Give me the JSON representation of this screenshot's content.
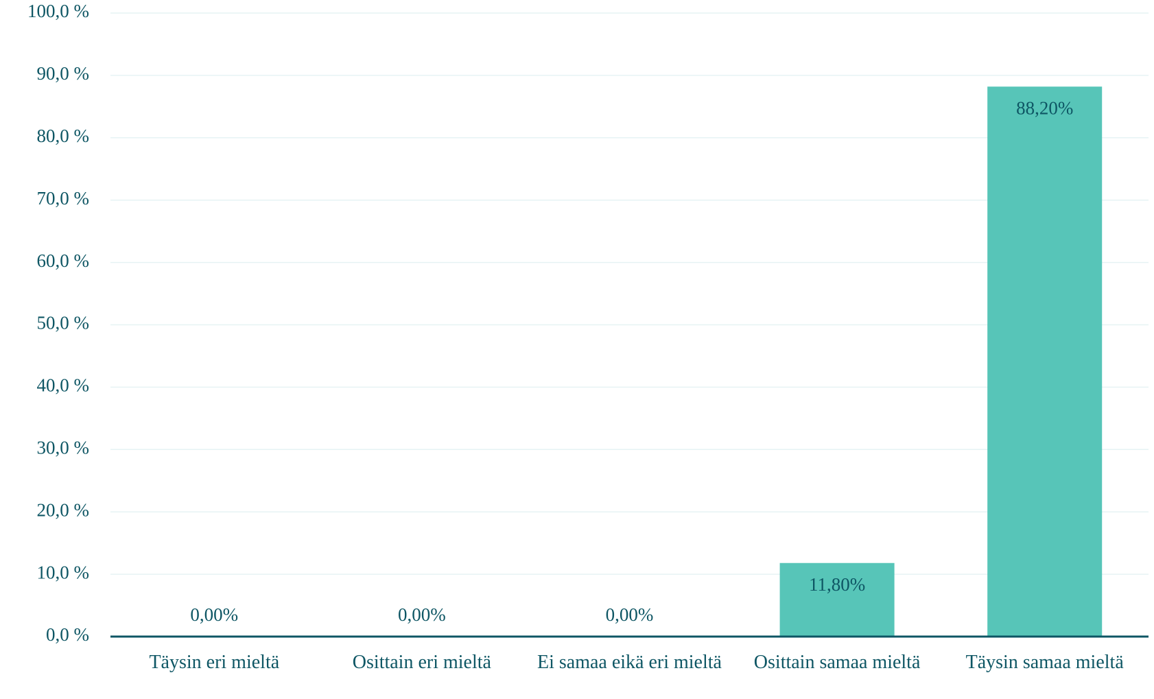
{
  "chart_data": {
    "type": "bar",
    "categories": [
      "Täysin eri mieltä",
      "Osittain eri mieltä",
      "Ei samaa eikä eri mieltä",
      "Osittain samaa mieltä",
      "Täysin samaa mieltä"
    ],
    "values": [
      0,
      0,
      0,
      11.8,
      88.2
    ],
    "value_labels": [
      "0,00%",
      "0,00%",
      "0,00%",
      "11,80%",
      "88,20%"
    ],
    "color": "#57c5b8",
    "ylim": [
      0,
      100
    ],
    "yticks": [
      {
        "value": 0,
        "label": "0,0 %"
      },
      {
        "value": 10,
        "label": "10,0 %"
      },
      {
        "value": 20,
        "label": "20,0 %"
      },
      {
        "value": 30,
        "label": "30,0 %"
      },
      {
        "value": 40,
        "label": "40,0 %"
      },
      {
        "value": 50,
        "label": "50,0 %"
      },
      {
        "value": 60,
        "label": "60,0 %"
      },
      {
        "value": 70,
        "label": "70,0 %"
      },
      {
        "value": 80,
        "label": "80,0 %"
      },
      {
        "value": 90,
        "label": "90,0 %"
      },
      {
        "value": 100,
        "label": "100,0 %"
      }
    ],
    "grid": true
  }
}
